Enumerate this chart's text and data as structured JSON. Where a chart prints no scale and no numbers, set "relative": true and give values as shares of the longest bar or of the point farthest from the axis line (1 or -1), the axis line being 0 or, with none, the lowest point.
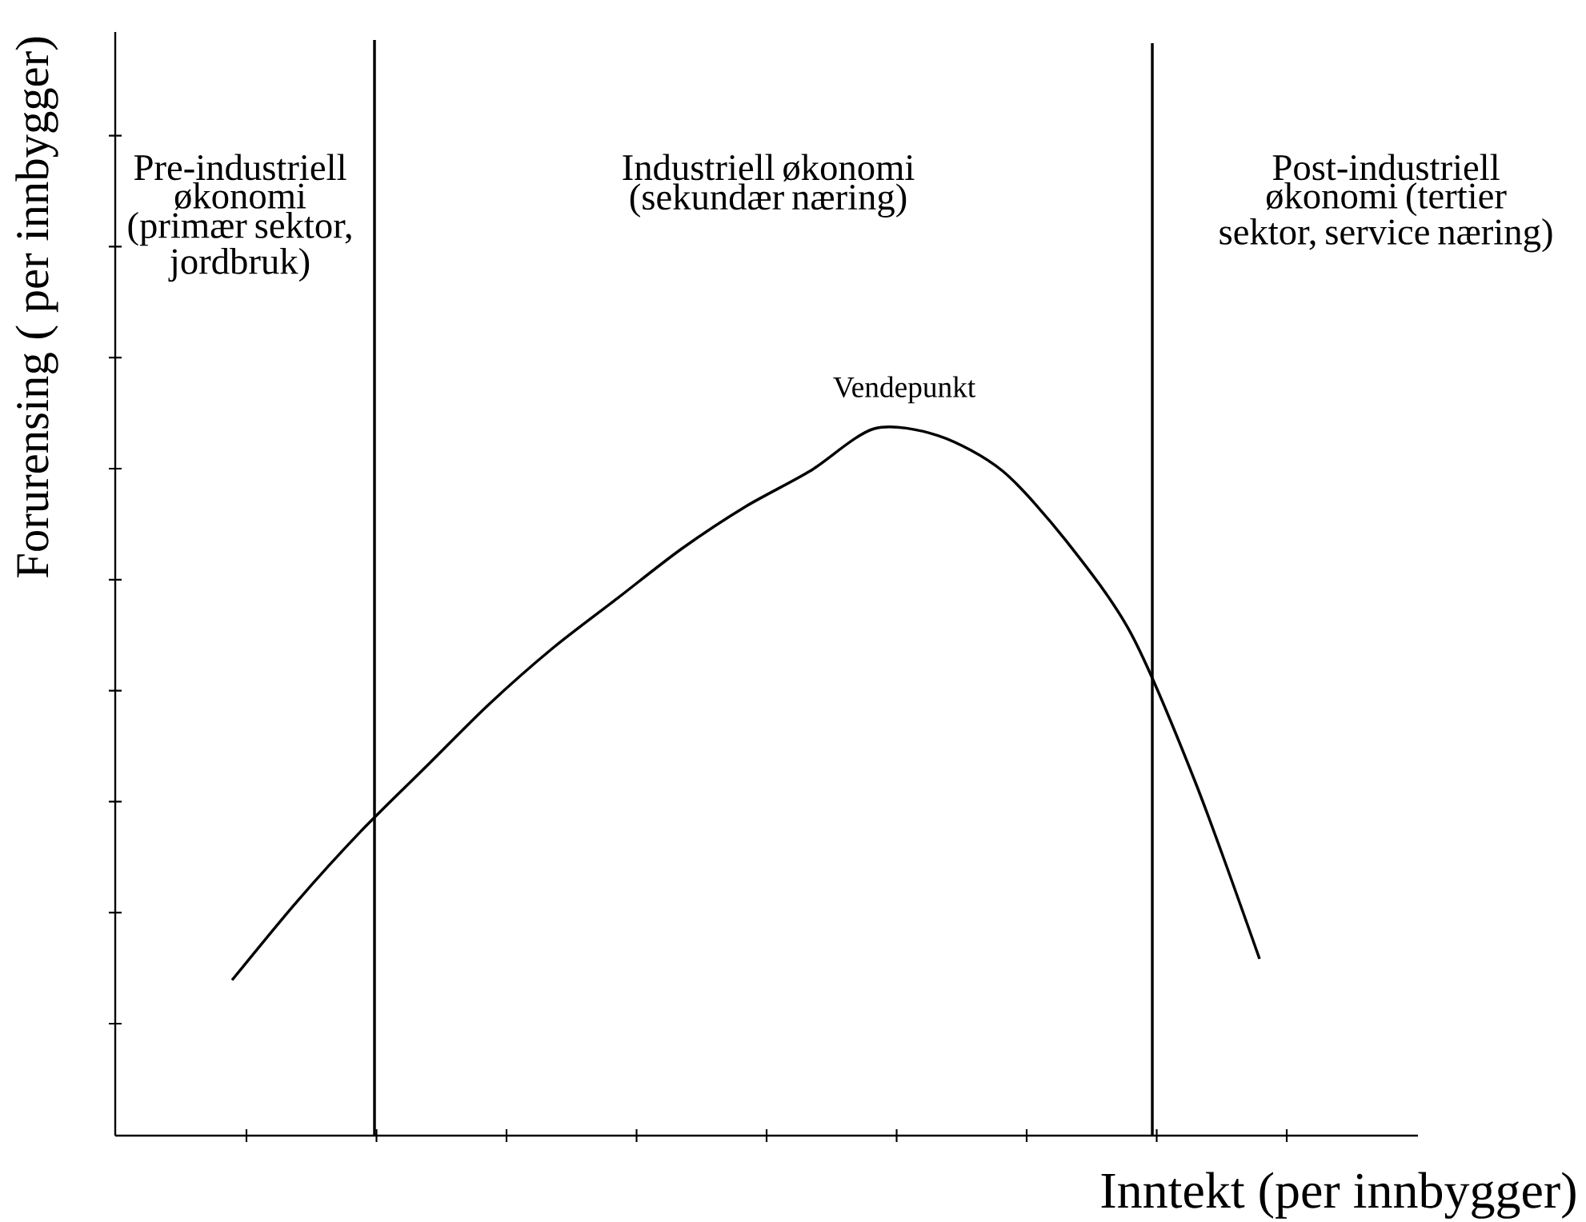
{
  "chart_data": {
    "type": "line",
    "relative": true,
    "xlabel": "Inntekt (per innbygger)",
    "ylabel": "Forurensing ( per innbygger)",
    "categories": [
      null,
      null,
      null,
      null,
      null,
      null,
      null,
      null,
      null,
      null,
      null,
      null,
      null,
      null,
      null,
      null,
      null
    ],
    "values": [
      0.22,
      0.33,
      0.43,
      0.52,
      0.61,
      0.69,
      0.76,
      0.83,
      0.89,
      0.94,
      1,
      0.99,
      0.94,
      0.84,
      0.71,
      0.5,
      0.25
    ],
    "color": "#000000",
    "marker": "none",
    "line_style": "solid",
    "annotations": [
      "Pre-industriell økonomi (primær sektor, jordbruk)",
      "Industriell økonomi (sekundær næring)",
      "Post-industriell økonomi (tertier sektor, service næring)",
      "Vendepunkt"
    ]
  }
}
